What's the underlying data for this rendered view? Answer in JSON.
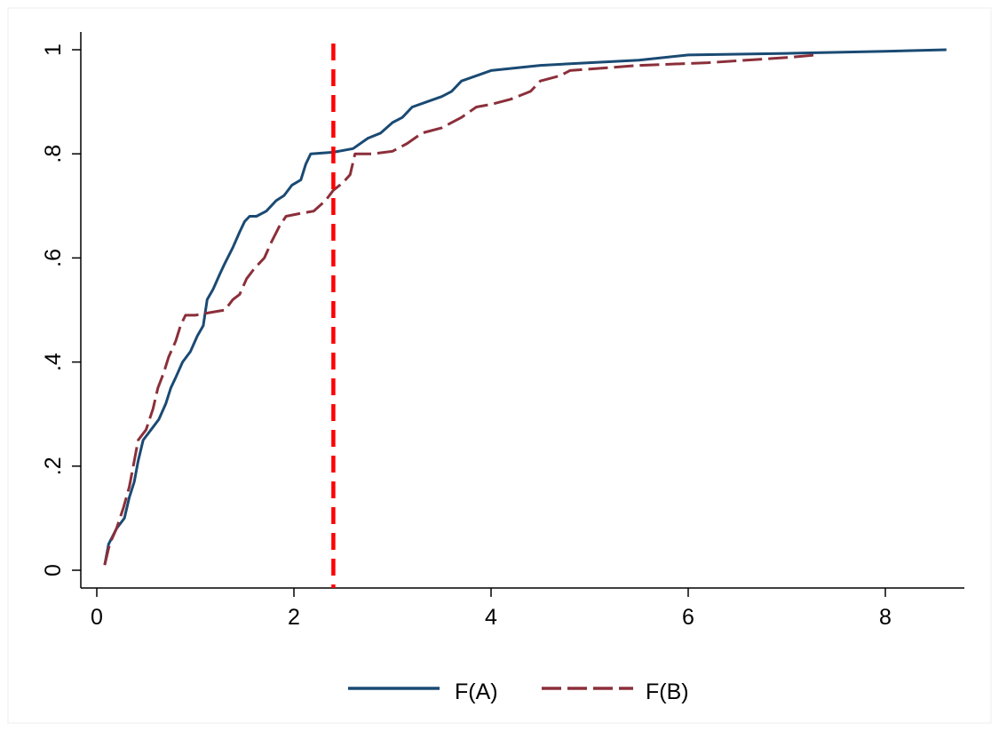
{
  "chart_data": {
    "type": "line",
    "title": "",
    "xlabel": "",
    "ylabel": "",
    "xlim": [
      0,
      8.6
    ],
    "ylim": [
      0,
      1
    ],
    "grid": false,
    "legend_position": "bottom",
    "x_ticks": [
      {
        "value": 0,
        "label": "0"
      },
      {
        "value": 2,
        "label": "2"
      },
      {
        "value": 4,
        "label": "4"
      },
      {
        "value": 6,
        "label": "6"
      },
      {
        "value": 8,
        "label": "8"
      }
    ],
    "y_ticks": [
      {
        "value": 0,
        "label": "0"
      },
      {
        "value": 0.2,
        "label": ".2"
      },
      {
        "value": 0.4,
        "label": ".4"
      },
      {
        "value": 0.6,
        "label": ".6"
      },
      {
        "value": 0.8,
        "label": ".8"
      },
      {
        "value": 1,
        "label": "1"
      }
    ],
    "reference_line": {
      "x": 2.4,
      "color": "#ff0000",
      "style": "dashed"
    },
    "series": [
      {
        "name": "F(A)",
        "color": "#1a4a73",
        "style": "solid",
        "points": [
          [
            0.08,
            0.01
          ],
          [
            0.12,
            0.05
          ],
          [
            0.2,
            0.08
          ],
          [
            0.28,
            0.1
          ],
          [
            0.33,
            0.14
          ],
          [
            0.38,
            0.17
          ],
          [
            0.42,
            0.21
          ],
          [
            0.47,
            0.25
          ],
          [
            0.55,
            0.27
          ],
          [
            0.63,
            0.29
          ],
          [
            0.7,
            0.32
          ],
          [
            0.75,
            0.35
          ],
          [
            0.8,
            0.37
          ],
          [
            0.87,
            0.4
          ],
          [
            0.95,
            0.42
          ],
          [
            1.02,
            0.45
          ],
          [
            1.08,
            0.47
          ],
          [
            1.12,
            0.52
          ],
          [
            1.18,
            0.54
          ],
          [
            1.25,
            0.57
          ],
          [
            1.3,
            0.59
          ],
          [
            1.38,
            0.62
          ],
          [
            1.45,
            0.65
          ],
          [
            1.5,
            0.67
          ],
          [
            1.55,
            0.68
          ],
          [
            1.62,
            0.68
          ],
          [
            1.72,
            0.69
          ],
          [
            1.82,
            0.71
          ],
          [
            1.9,
            0.72
          ],
          [
            1.98,
            0.74
          ],
          [
            2.07,
            0.75
          ],
          [
            2.12,
            0.78
          ],
          [
            2.17,
            0.8
          ],
          [
            2.4,
            0.803
          ],
          [
            2.6,
            0.81
          ],
          [
            2.75,
            0.83
          ],
          [
            2.88,
            0.84
          ],
          [
            3.0,
            0.86
          ],
          [
            3.1,
            0.87
          ],
          [
            3.2,
            0.89
          ],
          [
            3.35,
            0.9
          ],
          [
            3.5,
            0.91
          ],
          [
            3.6,
            0.92
          ],
          [
            3.7,
            0.94
          ],
          [
            3.85,
            0.95
          ],
          [
            4.0,
            0.96
          ],
          [
            4.5,
            0.97
          ],
          [
            5.0,
            0.975
          ],
          [
            5.5,
            0.98
          ],
          [
            6.0,
            0.99
          ],
          [
            7.0,
            0.993
          ],
          [
            8.0,
            0.997
          ],
          [
            8.62,
            1.0
          ]
        ]
      },
      {
        "name": "F(B)",
        "color": "#8b2f3a",
        "style": "dashed",
        "points": [
          [
            0.08,
            0.01
          ],
          [
            0.13,
            0.05
          ],
          [
            0.2,
            0.08
          ],
          [
            0.27,
            0.12
          ],
          [
            0.33,
            0.16
          ],
          [
            0.38,
            0.21
          ],
          [
            0.42,
            0.25
          ],
          [
            0.5,
            0.27
          ],
          [
            0.57,
            0.31
          ],
          [
            0.62,
            0.35
          ],
          [
            0.68,
            0.38
          ],
          [
            0.73,
            0.41
          ],
          [
            0.8,
            0.44
          ],
          [
            0.85,
            0.47
          ],
          [
            0.9,
            0.49
          ],
          [
            1.0,
            0.49
          ],
          [
            1.15,
            0.495
          ],
          [
            1.3,
            0.5
          ],
          [
            1.38,
            0.52
          ],
          [
            1.45,
            0.53
          ],
          [
            1.52,
            0.56
          ],
          [
            1.6,
            0.58
          ],
          [
            1.7,
            0.6
          ],
          [
            1.77,
            0.63
          ],
          [
            1.85,
            0.66
          ],
          [
            1.92,
            0.68
          ],
          [
            2.05,
            0.685
          ],
          [
            2.2,
            0.69
          ],
          [
            2.32,
            0.71
          ],
          [
            2.4,
            0.73
          ],
          [
            2.5,
            0.745
          ],
          [
            2.57,
            0.76
          ],
          [
            2.62,
            0.8
          ],
          [
            2.8,
            0.8
          ],
          [
            3.0,
            0.805
          ],
          [
            3.15,
            0.82
          ],
          [
            3.3,
            0.84
          ],
          [
            3.5,
            0.85
          ],
          [
            3.7,
            0.87
          ],
          [
            3.85,
            0.89
          ],
          [
            4.0,
            0.895
          ],
          [
            4.2,
            0.905
          ],
          [
            4.4,
            0.92
          ],
          [
            4.5,
            0.94
          ],
          [
            4.7,
            0.95
          ],
          [
            4.8,
            0.96
          ],
          [
            5.5,
            0.97
          ],
          [
            6.2,
            0.975
          ],
          [
            7.0,
            0.985
          ],
          [
            7.3,
            0.99
          ]
        ]
      }
    ]
  },
  "legend": {
    "items": [
      {
        "label": "F(A)"
      },
      {
        "label": "F(B)"
      }
    ]
  }
}
